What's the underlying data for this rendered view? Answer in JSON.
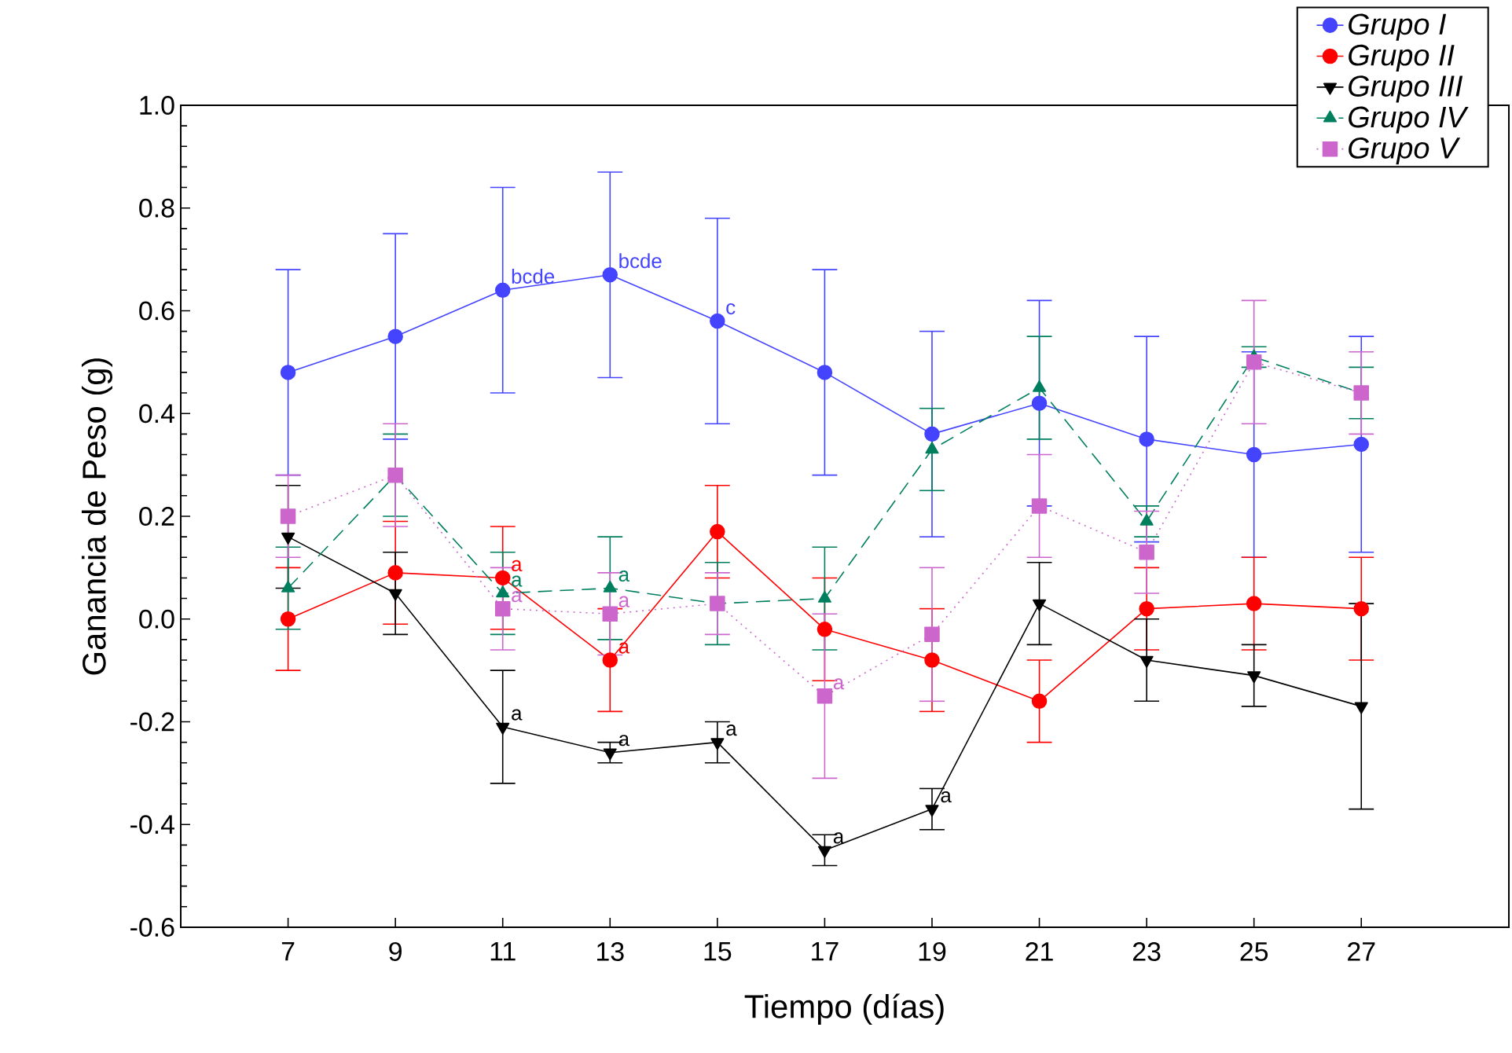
{
  "chart_data": {
    "type": "line",
    "xlabel": "Tiempo (días)",
    "ylabel": "Ganancia de Peso (g)",
    "x": [
      7,
      9,
      11,
      13,
      15,
      17,
      19,
      21,
      23,
      25,
      27
    ],
    "xlim": [
      5,
      29.75
    ],
    "xticks": [
      7,
      9,
      11,
      13,
      15,
      17,
      19,
      21,
      23,
      25,
      27
    ],
    "ylim": [
      -0.6,
      1.0
    ],
    "yticks": [
      -0.6,
      -0.4,
      -0.2,
      {
        "value": 0,
        "label": "0.0"
      },
      0.2,
      0.4,
      0.6,
      0.8,
      {
        "value": 1,
        "label": "1.0"
      }
    ],
    "legend": "top right",
    "grid": false,
    "series": [
      {
        "name": "Grupo I",
        "color": "#4444ff",
        "marker": "circle",
        "line_style": "solid",
        "values": [
          0.48,
          0.55,
          0.64,
          0.67,
          0.58,
          0.48,
          0.36,
          0.42,
          0.35,
          0.32,
          0.34
        ],
        "errors": [
          0.2,
          0.2,
          0.2,
          0.2,
          0.2,
          0.2,
          0.2,
          0.2,
          0.2,
          0.2,
          0.21
        ]
      },
      {
        "name": "Grupo II",
        "color": "#ff0000",
        "marker": "circle",
        "line_style": "solid",
        "values": [
          0.0,
          0.09,
          0.08,
          -0.08,
          0.17,
          -0.02,
          -0.08,
          -0.16,
          0.02,
          0.03,
          0.02
        ],
        "errors": [
          0.1,
          0.1,
          0.1,
          0.1,
          0.09,
          0.1,
          0.1,
          0.08,
          0.08,
          0.09,
          0.1
        ]
      },
      {
        "name": "Grupo III",
        "color": "#000000",
        "marker": "triangle_down",
        "line_style": "solid",
        "values": [
          0.16,
          0.05,
          -0.21,
          -0.26,
          -0.24,
          -0.45,
          -0.37,
          0.03,
          -0.08,
          -0.11,
          -0.17
        ],
        "errors": [
          0.1,
          0.08,
          0.11,
          0.02,
          0.04,
          0.03,
          0.04,
          0.08,
          0.08,
          0.06,
          0.2
        ]
      },
      {
        "name": "Grupo IV",
        "color": "#007f5f",
        "marker": "triangle",
        "line_style": "dashed",
        "values": [
          0.06,
          0.28,
          0.05,
          0.06,
          0.03,
          0.04,
          0.33,
          0.45,
          0.19,
          0.51,
          0.44
        ],
        "errors": [
          0.08,
          0.08,
          0.08,
          0.1,
          0.08,
          0.1,
          0.08,
          0.1,
          0.03,
          0.02,
          0.05
        ]
      },
      {
        "name": "Grupo V",
        "color": "#cc66cc",
        "marker": "square",
        "line_style": "dotted",
        "values": [
          0.2,
          0.28,
          0.02,
          0.01,
          0.03,
          -0.15,
          -0.03,
          0.22,
          0.13,
          0.5,
          0.44
        ],
        "errors": [
          0.08,
          0.1,
          0.08,
          0.08,
          0.06,
          0.16,
          0.13,
          0.1,
          0.08,
          0.12,
          0.08
        ]
      }
    ],
    "annotations": [
      {
        "text": "bcde",
        "x": 11,
        "y": 0.64
      },
      {
        "text": "bcde",
        "x": 13,
        "y": 0.67
      },
      {
        "text": "c",
        "x": 15,
        "y": 0.58
      },
      {
        "text": "a",
        "x": 11,
        "y": -0.21
      },
      {
        "text": "a",
        "x": 13,
        "y": -0.26
      },
      {
        "text": "a",
        "x": 15,
        "y": -0.24
      },
      {
        "text": "a",
        "x": 17,
        "y": -0.45
      },
      {
        "text": "a",
        "x": 19,
        "y": -0.37
      },
      {
        "text": "a",
        "x": 11,
        "y": 0.08
      },
      {
        "text": "a",
        "x": 13,
        "y": -0.08
      },
      {
        "text": "a",
        "x": 11,
        "y": 0.05
      },
      {
        "text": "a",
        "x": 13,
        "y": 0.06
      },
      {
        "text": "a",
        "x": 11,
        "y": 0.02
      },
      {
        "text": "a",
        "x": 13,
        "y": 0.01
      },
      {
        "text": "a",
        "x": 17,
        "y": -0.15
      }
    ]
  }
}
